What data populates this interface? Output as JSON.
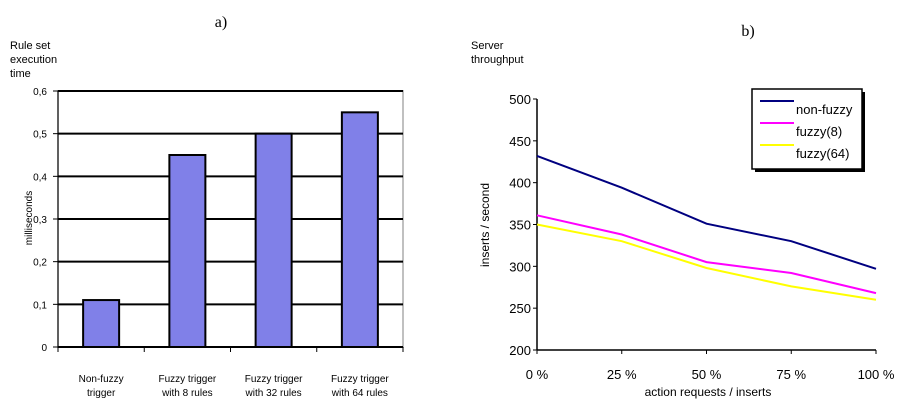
{
  "chart_data": [
    {
      "panel_label": "a)",
      "type": "bar",
      "title_lines": [
        "Rule set",
        "execution",
        "time"
      ],
      "ylabel": "milliseconds",
      "xlabel": "",
      "ylim": [
        0,
        0.6
      ],
      "yticks": [
        "0",
        "0,1",
        "0,2",
        "0,3",
        "0,4",
        "0,5",
        "0,6"
      ],
      "categories": [
        [
          "Non-fuzzy",
          "trigger"
        ],
        [
          "Fuzzy trigger",
          "with 8 rules"
        ],
        [
          "Fuzzy trigger",
          "with 32 rules"
        ],
        [
          "Fuzzy trigger",
          "with 64 rules"
        ]
      ],
      "values": [
        0.11,
        0.45,
        0.5,
        0.55
      ],
      "grid": true,
      "bar_color": "#8080e8"
    },
    {
      "panel_label": "b)",
      "type": "line",
      "title_lines": [
        "Server",
        "throughput"
      ],
      "ylabel": "inserts / second",
      "xlabel": "action requests / inserts",
      "ylim": [
        200,
        500
      ],
      "yticks": [
        "200",
        "250",
        "300",
        "350",
        "400",
        "450",
        "500"
      ],
      "x": [
        0,
        25,
        50,
        75,
        100
      ],
      "xticks": [
        "0 %",
        "25 %",
        "50 %",
        "75 %",
        "100 %"
      ],
      "legend_position": "top-right",
      "series": [
        {
          "name": "non-fuzzy",
          "color": "#000080",
          "values": [
            432,
            394,
            351,
            330,
            297
          ]
        },
        {
          "name": "fuzzy(8)",
          "color": "#ff00ff",
          "values": [
            361,
            338,
            305,
            292,
            268
          ]
        },
        {
          "name": "fuzzy(64)",
          "color": "#ffff00",
          "values": [
            350,
            330,
            298,
            276,
            260
          ]
        }
      ]
    }
  ]
}
